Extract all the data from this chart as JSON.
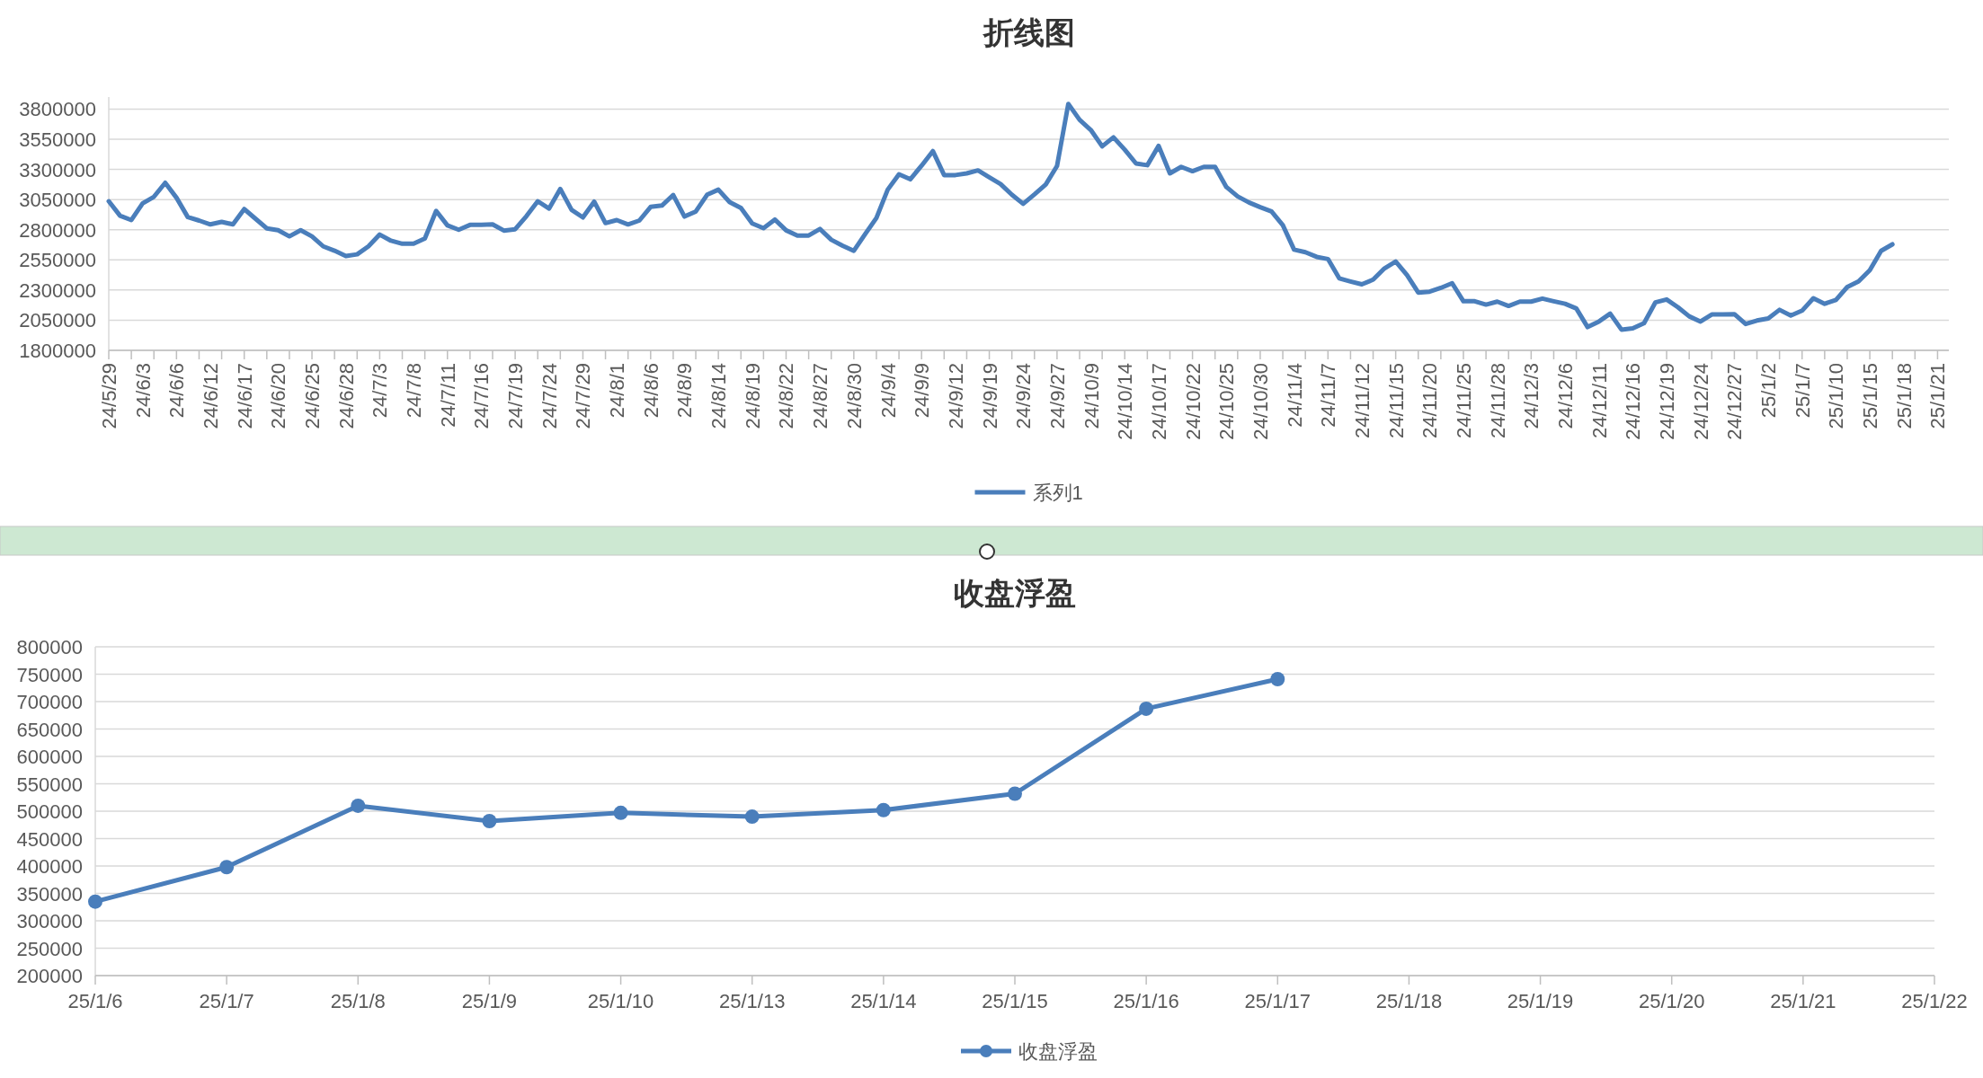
{
  "chart_data": [
    {
      "type": "line",
      "title": "折线图",
      "categories": [
        "24/5/29",
        null,
        null,
        "24/6/3",
        null,
        null,
        "24/6/6",
        null,
        null,
        "24/6/12",
        null,
        null,
        "24/6/17",
        null,
        null,
        "24/6/20",
        null,
        null,
        "24/6/25",
        null,
        null,
        "24/6/28",
        null,
        null,
        "24/7/3",
        null,
        null,
        "24/7/8",
        null,
        null,
        "24/7/11",
        null,
        null,
        "24/7/16",
        null,
        null,
        "24/7/19",
        null,
        null,
        "24/7/24",
        null,
        null,
        "24/7/29",
        null,
        null,
        "24/8/1",
        null,
        null,
        "24/8/6",
        null,
        null,
        "24/8/9",
        null,
        null,
        "24/8/14",
        null,
        null,
        "24/8/19",
        null,
        null,
        "24/8/22",
        null,
        null,
        "24/8/27",
        null,
        null,
        "24/8/30",
        null,
        null,
        "24/9/4",
        null,
        null,
        "24/9/9",
        null,
        null,
        "24/9/12",
        null,
        null,
        "24/9/19",
        null,
        null,
        "24/9/24",
        null,
        null,
        "24/9/27",
        null,
        null,
        "24/10/9",
        null,
        null,
        "24/10/14",
        null,
        null,
        "24/10/17",
        null,
        null,
        "24/10/22",
        null,
        null,
        "24/10/25",
        null,
        null,
        "24/10/30",
        null,
        null,
        "24/11/4",
        null,
        null,
        "24/11/7",
        null,
        null,
        "24/11/12",
        null,
        null,
        "24/11/15",
        null,
        null,
        "24/11/20",
        null,
        null,
        "24/11/25",
        null,
        null,
        "24/11/28",
        null,
        null,
        "24/12/3",
        null,
        null,
        "24/12/6",
        null,
        null,
        "24/12/11",
        null,
        null,
        "24/12/16",
        null,
        null,
        "24/12/19",
        null,
        null,
        "24/12/24",
        null,
        null,
        "24/12/27",
        null,
        null,
        "25/1/2",
        null,
        null,
        "25/1/7",
        null,
        null,
        "25/1/10",
        null,
        null,
        "25/1/15",
        null,
        null,
        "25/1/18",
        null,
        null,
        "25/1/21",
        null
      ],
      "series": [
        {
          "name": "系列1",
          "color": "#4a7ebb",
          "values": [
            3036000,
            2916000,
            2880000,
            3018000,
            3073000,
            3189000,
            3065000,
            2905000,
            2876000,
            2844000,
            2865000,
            2844000,
            2971000,
            2891000,
            2811000,
            2796000,
            2745000,
            2796000,
            2745000,
            2662000,
            2626000,
            2582000,
            2596000,
            2662000,
            2760000,
            2709000,
            2684000,
            2684000,
            2727000,
            2956000,
            2836000,
            2800000,
            2840000,
            2840000,
            2844000,
            2793000,
            2804000,
            2913000,
            3036000,
            2975000,
            3138000,
            2964000,
            2902000,
            3033000,
            2855000,
            2880000,
            2844000,
            2876000,
            2989000,
            3000000,
            3088000,
            2909000,
            2951000,
            3090000,
            3132000,
            3029000,
            2980000,
            2852000,
            2813000,
            2884000,
            2795000,
            2752000,
            2752000,
            2806000,
            2717000,
            2667000,
            2625000,
            2763000,
            2898000,
            3132000,
            3260000,
            3218000,
            3331000,
            3452000,
            3253000,
            3253000,
            3267000,
            3292000,
            3235000,
            3179000,
            3090000,
            3015000,
            3093000,
            3175000,
            3328000,
            3843000,
            3711000,
            3626000,
            3491000,
            3566000,
            3463000,
            3349000,
            3335000,
            3495000,
            3267000,
            3321000,
            3285000,
            3321000,
            3321000,
            3154000,
            3076000,
            3026000,
            2987000,
            2951000,
            2838000,
            2635000,
            2614000,
            2575000,
            2557000,
            2397000,
            2371000,
            2347000,
            2386000,
            2479000,
            2536000,
            2425000,
            2279000,
            2286000,
            2318000,
            2357000,
            2207000,
            2207000,
            2179000,
            2204000,
            2168000,
            2204000,
            2204000,
            2229000,
            2207000,
            2186000,
            2147000,
            1993000,
            2039000,
            2104000,
            1972000,
            1982000,
            2025000,
            2197000,
            2222000,
            2157000,
            2082000,
            2039000,
            2097000,
            2097000,
            2100000,
            2018000,
            2047000,
            2064000,
            2136000,
            2089000,
            2129000,
            2232000,
            2186000,
            2218000,
            2325000,
            2371000,
            2464000,
            2625000,
            2679000,
            null,
            null,
            null,
            null,
            null
          ]
        }
      ],
      "ylim": [
        1800000,
        3900000
      ],
      "yticks": [
        1800000,
        2050000,
        2300000,
        2550000,
        2800000,
        3050000,
        3300000,
        3550000,
        3800000
      ],
      "grid": "y",
      "legend": "bottom"
    },
    {
      "type": "line",
      "title": "收盘浮盈",
      "categories": [
        "25/1/6",
        "25/1/7",
        "25/1/8",
        "25/1/9",
        "25/1/10",
        "25/1/13",
        "25/1/14",
        "25/1/15",
        "25/1/16",
        "25/1/17",
        "25/1/18",
        "25/1/19",
        "25/1/20",
        "25/1/21",
        "25/1/22"
      ],
      "series": [
        {
          "name": "收盘浮盈",
          "color": "#4a7ebb",
          "values": [
            335000,
            398000,
            510000,
            482000,
            497000,
            490000,
            502000,
            532000,
            687000,
            741000,
            null,
            null,
            null,
            null,
            null
          ]
        }
      ],
      "ylim": [
        200000,
        800000
      ],
      "yticks": [
        200000,
        250000,
        300000,
        350000,
        400000,
        450000,
        500000,
        550000,
        600000,
        650000,
        700000,
        750000,
        800000
      ],
      "grid": "y",
      "legend": "bottom",
      "marker": "circle"
    }
  ]
}
